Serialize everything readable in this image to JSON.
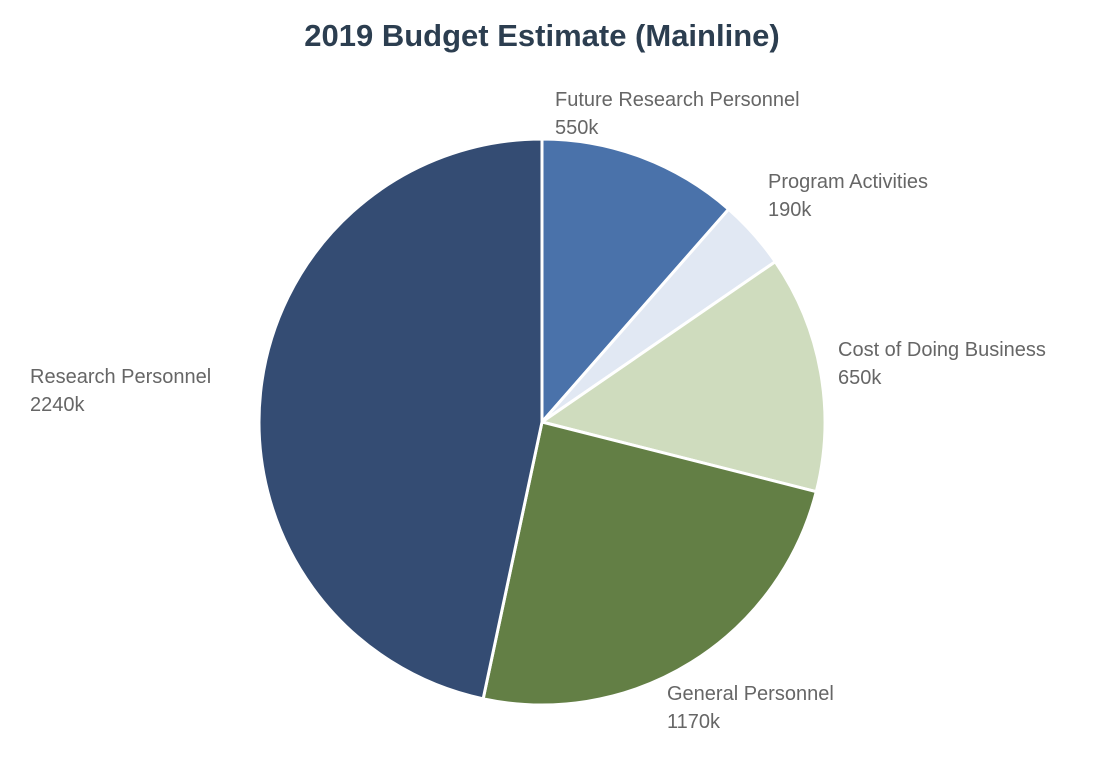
{
  "chart_data": {
    "type": "pie",
    "title": "2019 Budget Estimate (Mainline)",
    "unit_suffix": "k",
    "start_angle": "top, clockwise",
    "slices": [
      {
        "label": "Future Research Personnel",
        "value": 550,
        "value_label": "550k",
        "color": "#4a72aa"
      },
      {
        "label": "Program Activities",
        "value": 190,
        "value_label": "190k",
        "color": "#e1e8f3"
      },
      {
        "label": "Cost of Doing Business",
        "value": 650,
        "value_label": "650k",
        "color": "#cfdcbe"
      },
      {
        "label": "General Personnel",
        "value": 1170,
        "value_label": "1170k",
        "color": "#637f45"
      },
      {
        "label": "Research Personnel",
        "value": 2240,
        "value_label": "2240k",
        "color": "#344c73"
      }
    ]
  }
}
